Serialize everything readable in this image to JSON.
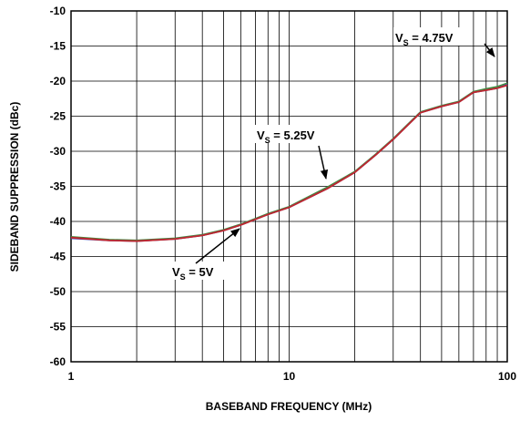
{
  "chart_data": {
    "type": "line",
    "x_label": "BASEBAND FREQUENCY (MHz)",
    "y_label": "SIDEBAND SUPPRESSION (dBc)",
    "x_scale": "log",
    "xlim": [
      1,
      100
    ],
    "xticks": [
      1,
      10,
      100
    ],
    "minor_grid_x": [
      2,
      3,
      4,
      5,
      6,
      7,
      8,
      9,
      20,
      30,
      40,
      50,
      60,
      70,
      80,
      90
    ],
    "ylim": [
      -60,
      -10
    ],
    "yticks": [
      -60,
      -55,
      -50,
      -45,
      -40,
      -35,
      -30,
      -25,
      -20,
      -15,
      -10
    ],
    "grid": true,
    "x": [
      1,
      1.5,
      2,
      3,
      4,
      5,
      6,
      7,
      8,
      10,
      15,
      20,
      25,
      30,
      40,
      50,
      60,
      70,
      80,
      90,
      100
    ],
    "series": [
      {
        "color": "#3f8f3f",
        "values": [
          -42.2,
          -42.6,
          -42.7,
          -42.4,
          -41.9,
          -41.2,
          -40.4,
          -39.6,
          -38.9,
          -37.9,
          -35.1,
          -32.9,
          -30.4,
          -28.2,
          -24.4,
          -23.5,
          -22.9,
          -21.5,
          -21.1,
          -20.8,
          -20.3
        ]
      },
      {
        "color": "#4b4bb0",
        "values": [
          -42.4,
          -42.7,
          -42.8,
          -42.5,
          -42.0,
          -41.3,
          -40.5,
          -39.7,
          -39.0,
          -38.0,
          -35.3,
          -33.0,
          -30.5,
          -28.3,
          -24.5,
          -23.6,
          -23.0,
          -21.6,
          -21.3,
          -21.0,
          -20.5
        ]
      },
      {
        "color": "#c0272d",
        "values": [
          -42.3,
          -42.7,
          -42.8,
          -42.5,
          -42.0,
          -41.3,
          -40.5,
          -39.7,
          -39.0,
          -38.0,
          -35.3,
          -33.0,
          -30.5,
          -28.3,
          -24.5,
          -23.6,
          -23.0,
          -21.6,
          -21.3,
          -21.0,
          -20.6
        ]
      }
    ],
    "annotations": [
      {
        "main": "V",
        "sub": "S",
        "rest": " = 4.75V"
      },
      {
        "main": "V",
        "sub": "S",
        "rest": " = 5.25V"
      },
      {
        "main": "V",
        "sub": "S",
        "rest": " = 5V"
      }
    ]
  }
}
